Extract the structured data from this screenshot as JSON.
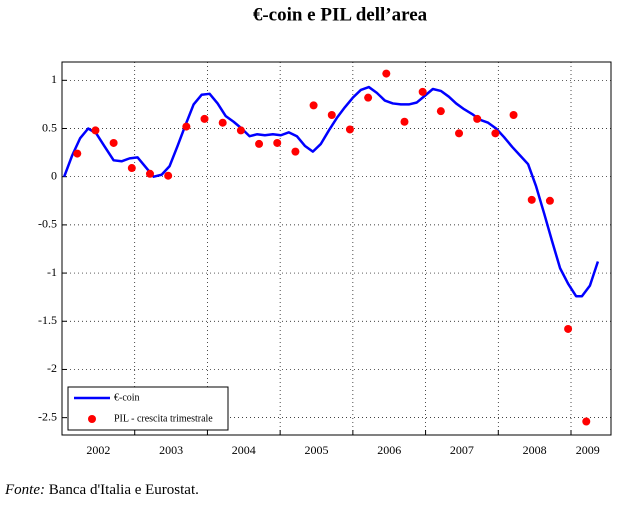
{
  "chart_data": {
    "type": "line",
    "title": "€-coin e PIL dell’area",
    "xlim": [
      2002.0,
      2009.55
    ],
    "ylim": [
      -2.68,
      1.19
    ],
    "yticks": [
      1,
      0.5,
      0,
      -0.5,
      -1,
      -1.5,
      -2,
      -2.5
    ],
    "xticks": [
      {
        "value": 2002.5,
        "label": "2002"
      },
      {
        "value": 2003.5,
        "label": "2003"
      },
      {
        "value": 2004.5,
        "label": "2004"
      },
      {
        "value": 2005.5,
        "label": "2005"
      },
      {
        "value": 2006.5,
        "label": "2006"
      },
      {
        "value": 2007.5,
        "label": "2007"
      },
      {
        "value": 2008.5,
        "label": "2008"
      },
      {
        "value": 2009.23,
        "label": "2009"
      }
    ],
    "xgrid": [
      2003,
      2004,
      2005,
      2006,
      2007,
      2008,
      2009
    ],
    "grid": true,
    "legend": "lower left",
    "series": [
      {
        "name": "€-coin",
        "color": "#0000ff",
        "style": "line",
        "x": [
          2002.03,
          2002.14,
          2002.25,
          2002.36,
          2002.47,
          2002.58,
          2002.71,
          2002.82,
          2002.93,
          2003.04,
          2003.15,
          2003.26,
          2003.37,
          2003.48,
          2003.59,
          2003.7,
          2003.81,
          2003.92,
          2004.03,
          2004.14,
          2004.25,
          2004.36,
          2004.47,
          2004.58,
          2004.68,
          2004.79,
          2004.9,
          2005.01,
          2005.12,
          2005.23,
          2005.34,
          2005.45,
          2005.56,
          2005.67,
          2005.78,
          2005.89,
          2006.0,
          2006.11,
          2006.22,
          2006.33,
          2006.44,
          2006.55,
          2006.66,
          2006.77,
          2006.88,
          2006.99,
          2007.1,
          2007.21,
          2007.32,
          2007.42,
          2007.53,
          2007.64,
          2007.75,
          2007.86,
          2007.97,
          2008.08,
          2008.19,
          2008.3,
          2008.41,
          2008.52,
          2008.63,
          2008.74,
          2008.85,
          2008.96,
          2009.07,
          2009.15,
          2009.26,
          2009.37
        ],
        "values": [
          0.0,
          0.22,
          0.4,
          0.5,
          0.45,
          0.32,
          0.17,
          0.16,
          0.19,
          0.2,
          0.1,
          0.0,
          0.02,
          0.11,
          0.32,
          0.54,
          0.75,
          0.85,
          0.86,
          0.76,
          0.63,
          0.57,
          0.5,
          0.42,
          0.44,
          0.43,
          0.44,
          0.43,
          0.46,
          0.42,
          0.32,
          0.26,
          0.34,
          0.48,
          0.61,
          0.72,
          0.82,
          0.9,
          0.93,
          0.87,
          0.79,
          0.76,
          0.75,
          0.75,
          0.77,
          0.84,
          0.91,
          0.89,
          0.83,
          0.76,
          0.7,
          0.65,
          0.59,
          0.56,
          0.5,
          0.41,
          0.31,
          0.22,
          0.13,
          -0.1,
          -0.38,
          -0.67,
          -0.95,
          -1.11,
          -1.24,
          -1.24,
          -1.13,
          -0.88
        ]
      },
      {
        "name": "PIL - crescita trimestrale",
        "color": "#ff0000",
        "style": "markers",
        "x": [
          2002.21,
          2002.46,
          2002.71,
          2002.96,
          2003.21,
          2003.46,
          2003.71,
          2003.96,
          2004.21,
          2004.46,
          2004.71,
          2004.96,
          2005.21,
          2005.46,
          2005.71,
          2005.96,
          2006.21,
          2006.46,
          2006.71,
          2006.96,
          2007.21,
          2007.46,
          2007.71,
          2007.96,
          2008.21,
          2008.46,
          2008.71,
          2008.96,
          2009.21
        ],
        "values": [
          0.24,
          0.48,
          0.35,
          0.09,
          0.03,
          0.01,
          0.52,
          0.6,
          0.56,
          0.48,
          0.34,
          0.35,
          0.26,
          0.74,
          0.64,
          0.49,
          0.82,
          1.07,
          0.57,
          0.88,
          0.68,
          0.45,
          0.6,
          0.45,
          0.64,
          -0.24,
          -0.25,
          -1.58,
          -2.54
        ]
      }
    ]
  },
  "source_label": "Fonte:",
  "source_text": "Banca d'Italia e Eurostat."
}
